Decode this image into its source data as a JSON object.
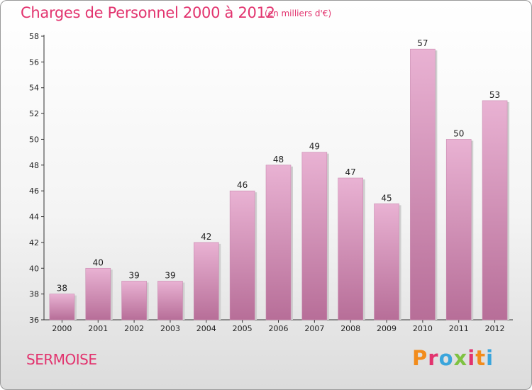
{
  "header": {
    "title": "Charges de Personnel 2000 à 2012",
    "subtitle": "(en milliers d'€)"
  },
  "footer": {
    "commune": "SERMOISE",
    "logo_letters": [
      "P",
      "r",
      "o",
      "x",
      "i",
      "t",
      "i"
    ],
    "logo_colors": [
      "#f28c1c",
      "#e2336e",
      "#3aa5dc",
      "#7fc242",
      "#e2336e",
      "#f28c1c",
      "#3aa5dc"
    ]
  },
  "colors": {
    "bar_top": "#e9b2d3",
    "bar_bottom": "#b76e98",
    "title": "#e2336e"
  },
  "chart_data": {
    "type": "bar",
    "title": "Charges de Personnel 2000 à 2012",
    "subtitle": "(en milliers d'€)",
    "categories": [
      "2000",
      "2001",
      "2002",
      "2003",
      "2004",
      "2005",
      "2006",
      "2007",
      "2008",
      "2009",
      "2010",
      "2011",
      "2012"
    ],
    "values": [
      38,
      40,
      39,
      39,
      42,
      46,
      48,
      49,
      47,
      45,
      57,
      50,
      53
    ],
    "ylim": [
      36,
      58
    ],
    "yticks": [
      36,
      38,
      40,
      42,
      44,
      46,
      48,
      50,
      52,
      54,
      56,
      58
    ],
    "grid": false,
    "legend": "none"
  }
}
